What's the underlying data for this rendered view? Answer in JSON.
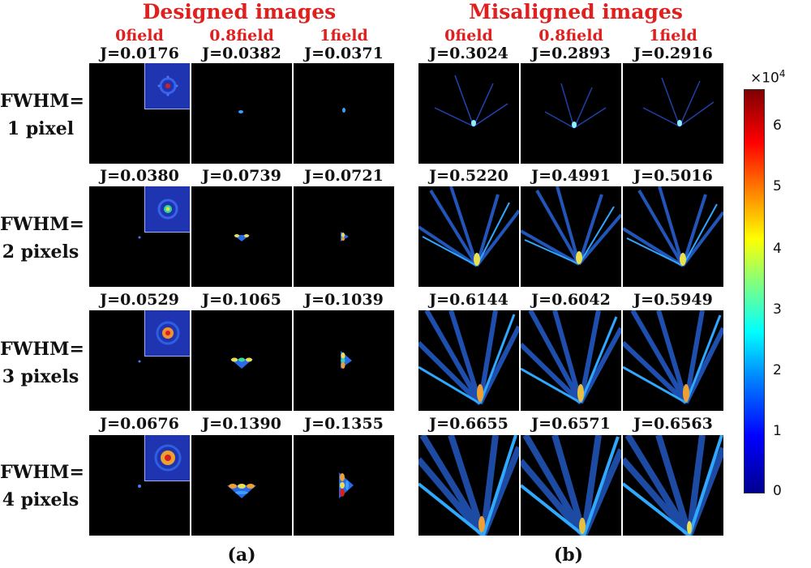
{
  "figure": {
    "left_title": "Designed images",
    "right_title": "Misaligned images",
    "field_labels": [
      "0field",
      "0.8field",
      "1field"
    ],
    "rows": [
      {
        "label_line1": "FWHM=",
        "label_line2": "1 pixel",
        "designed_j": [
          "J=0.0176",
          "J=0.0382",
          "J=0.0371"
        ],
        "misaligned_j": [
          "J=0.3024",
          "J=0.2893",
          "J=0.2916"
        ]
      },
      {
        "label_line1": "FWHM=",
        "label_line2": "2 pixels",
        "designed_j": [
          "J=0.0380",
          "J=0.0739",
          "J=0.0721"
        ],
        "misaligned_j": [
          "J=0.5220",
          "J=0.4991",
          "J=0.5016"
        ]
      },
      {
        "label_line1": "FWHM=",
        "label_line2": "3 pixels",
        "designed_j": [
          "J=0.0529",
          "J=0.1065",
          "J=0.1039"
        ],
        "misaligned_j": [
          "J=0.6144",
          "J=0.6042",
          "J=0.5949"
        ]
      },
      {
        "label_line1": "FWHM=",
        "label_line2": "4 pixels",
        "designed_j": [
          "J=0.0676",
          "J=0.1390",
          "J=0.1355"
        ],
        "misaligned_j": [
          "J=0.6655",
          "J=0.6571",
          "J=0.6563"
        ]
      }
    ],
    "caption_a": "(a)",
    "caption_b": "(b)",
    "colorbar": {
      "exponent_label": "×10",
      "exponent_power": "4",
      "ticks": [
        "6",
        "5",
        "4",
        "3",
        "2",
        "1",
        "0"
      ],
      "colormap": "jet",
      "min": 0,
      "max": 6.6
    }
  }
}
